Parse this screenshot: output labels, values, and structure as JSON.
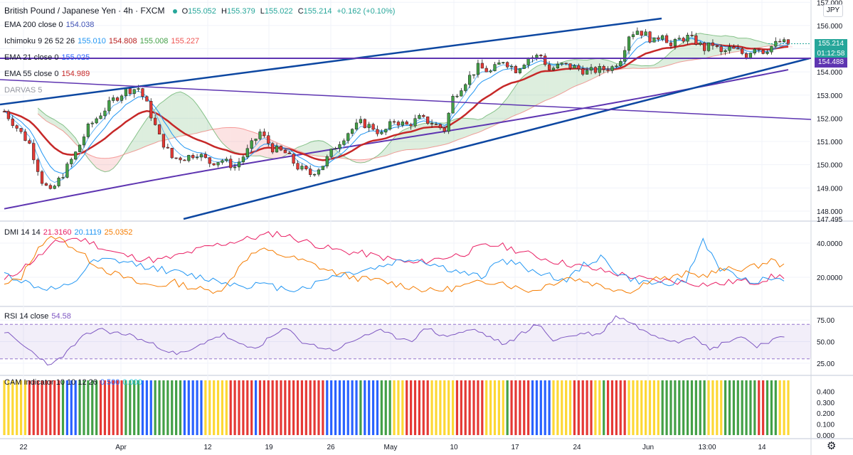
{
  "header": {
    "symbol": "British Pound / Japanese Yen · 4h · FXCM",
    "ohlc": {
      "o_label": "O",
      "o": "155.052",
      "h_label": "H",
      "h": "155.379",
      "l_label": "L",
      "l": "155.022",
      "c_label": "C",
      "c": "155.214",
      "change": "+0.162 (+0.10%)"
    },
    "status_color": "#26a69a"
  },
  "indicators": [
    {
      "label": "EMA 200 close 0",
      "values": [
        {
          "v": "154.038",
          "color": "#3f51b5"
        }
      ]
    },
    {
      "label": "Ichimoku 9 26 52 26",
      "values": [
        {
          "v": "155.010",
          "color": "#2196f3"
        },
        {
          "v": "154.808",
          "color": "#b71c1c"
        },
        {
          "v": "155.008",
          "color": "#43a047"
        },
        {
          "v": "155.227",
          "color": "#ef5350"
        }
      ]
    },
    {
      "label": "EMA 21 close 0",
      "values": [
        {
          "v": "155.025",
          "color": "#2962ff"
        }
      ]
    },
    {
      "label": "EMA 55 close 0",
      "values": [
        {
          "v": "154.989",
          "color": "#c62828"
        }
      ]
    },
    {
      "label": "DARVAS 5",
      "values": [],
      "muted": true
    }
  ],
  "dmi": {
    "label": "DMI 14 14",
    "values": [
      {
        "v": "21.3160",
        "color": "#e91e63"
      },
      {
        "v": "20.1119",
        "color": "#2196f3"
      },
      {
        "v": "25.0352",
        "color": "#f57c00"
      }
    ]
  },
  "rsi": {
    "label": "RSI 14 close",
    "value": "54.58",
    "color": "#7e57c2"
  },
  "cam": {
    "label": "CAM Indicator 10 10 12 26",
    "values": [
      {
        "v": "0.500",
        "color": "#2962ff"
      },
      {
        "v": "0.000",
        "color": "#26c6da"
      }
    ]
  },
  "currency_badge": "JPY",
  "price_tags": [
    {
      "value": "155.214",
      "sub": "01:12:58",
      "color": "#26a69a"
    },
    {
      "value": "154.488",
      "color": "#5e35b1"
    }
  ],
  "price_axis_clipped_label": "147.495",
  "chart_data": [
    {
      "type": "candlestick",
      "title": "British Pound / Japanese Yen · 4h · FXCM",
      "x_tick_labels": [
        "22",
        "Apr",
        "12",
        "19",
        "26",
        "May",
        "10",
        "17",
        "24",
        "Jun",
        "13:00",
        "14"
      ],
      "y_tick_labels": [
        "148.000",
        "149.000",
        "150.000",
        "151.000",
        "152.000",
        "153.000",
        "154.000",
        "155.000",
        "156.000",
        "157.000"
      ],
      "ylim": [
        147.6,
        157.1
      ],
      "grid": true,
      "close_path": [
        {
          "t": 0,
          "p": 152.3
        },
        {
          "t": 3,
          "p": 151.6
        },
        {
          "t": 6,
          "p": 150.9
        },
        {
          "t": 9,
          "p": 149.3
        },
        {
          "t": 11,
          "p": 148.8
        },
        {
          "t": 14,
          "p": 149.6
        },
        {
          "t": 17,
          "p": 150.5
        },
        {
          "t": 20,
          "p": 151.6
        },
        {
          "t": 23,
          "p": 152.2
        },
        {
          "t": 26,
          "p": 152.8
        },
        {
          "t": 29,
          "p": 153.2
        },
        {
          "t": 32,
          "p": 153.3
        },
        {
          "t": 34,
          "p": 152.6
        },
        {
          "t": 37,
          "p": 151.2
        },
        {
          "t": 40,
          "p": 150.3
        },
        {
          "t": 43,
          "p": 150.3
        },
        {
          "t": 46,
          "p": 150.5
        },
        {
          "t": 49,
          "p": 150.1
        },
        {
          "t": 52,
          "p": 150.2
        },
        {
          "t": 55,
          "p": 149.9
        },
        {
          "t": 58,
          "p": 150.6
        },
        {
          "t": 61,
          "p": 151.4
        },
        {
          "t": 64,
          "p": 150.7
        },
        {
          "t": 67,
          "p": 150.5
        },
        {
          "t": 70,
          "p": 149.9
        },
        {
          "t": 73,
          "p": 149.6
        },
        {
          "t": 76,
          "p": 150.0
        },
        {
          "t": 79,
          "p": 150.8
        },
        {
          "t": 82,
          "p": 151.4
        },
        {
          "t": 85,
          "p": 151.8
        },
        {
          "t": 88,
          "p": 151.6
        },
        {
          "t": 90,
          "p": 151.3
        },
        {
          "t": 93,
          "p": 151.9
        },
        {
          "t": 96,
          "p": 151.7
        },
        {
          "t": 99,
          "p": 152.0
        },
        {
          "t": 102,
          "p": 151.8
        },
        {
          "t": 105,
          "p": 151.5
        },
        {
          "t": 107,
          "p": 152.9
        },
        {
          "t": 110,
          "p": 153.6
        },
        {
          "t": 113,
          "p": 154.2
        },
        {
          "t": 116,
          "p": 154.0
        },
        {
          "t": 119,
          "p": 154.5
        },
        {
          "t": 122,
          "p": 154.1
        },
        {
          "t": 125,
          "p": 154.6
        },
        {
          "t": 128,
          "p": 154.7
        },
        {
          "t": 130,
          "p": 154.1
        },
        {
          "t": 133,
          "p": 154.3
        },
        {
          "t": 136,
          "p": 154.2
        },
        {
          "t": 139,
          "p": 154.0
        },
        {
          "t": 142,
          "p": 154.1
        },
        {
          "t": 145,
          "p": 154.2
        },
        {
          "t": 147,
          "p": 154.6
        },
        {
          "t": 149,
          "p": 155.6
        },
        {
          "t": 151,
          "p": 155.8
        },
        {
          "t": 153,
          "p": 155.6
        },
        {
          "t": 155,
          "p": 155.3
        },
        {
          "t": 157,
          "p": 155.7
        },
        {
          "t": 159,
          "p": 155.1
        },
        {
          "t": 161,
          "p": 155.4
        },
        {
          "t": 163,
          "p": 155.5
        },
        {
          "t": 165,
          "p": 155.3
        },
        {
          "t": 167,
          "p": 155.0
        },
        {
          "t": 169,
          "p": 155.2
        },
        {
          "t": 171,
          "p": 154.8
        },
        {
          "t": 173,
          "p": 155.0
        },
        {
          "t": 175,
          "p": 154.9
        },
        {
          "t": 177,
          "p": 154.7
        },
        {
          "t": 179,
          "p": 155.1
        },
        {
          "t": 181,
          "p": 154.9
        },
        {
          "t": 183,
          "p": 155.1
        },
        {
          "t": 185,
          "p": 155.3
        },
        {
          "t": 187,
          "p": 155.2
        }
      ]
    },
    {
      "type": "line",
      "title": "DMI 14 14",
      "y_tick_labels": [
        "20.0000",
        "40.0000"
      ],
      "ylim": [
        5,
        50
      ],
      "series": [
        {
          "color": "#e91e63",
          "values": [
            18,
            25,
            32,
            40,
            43,
            41,
            36,
            33,
            31,
            30,
            32,
            35,
            38,
            40,
            42,
            44,
            46,
            43,
            40,
            37,
            35,
            34,
            32,
            30,
            28,
            30,
            32,
            34,
            38,
            39,
            36,
            33,
            30,
            28,
            26,
            24,
            22,
            20,
            18,
            18,
            17,
            16,
            16,
            18,
            17,
            20,
            21
          ]
        },
        {
          "color": "#2196f3",
          "values": [
            22,
            18,
            14,
            13,
            15,
            28,
            30,
            29,
            27,
            25,
            23,
            21,
            19,
            17,
            15,
            16,
            14,
            13,
            15,
            20,
            22,
            24,
            26,
            29,
            31,
            28,
            25,
            22,
            20,
            30,
            28,
            24,
            21,
            18,
            27,
            32,
            22,
            18,
            16,
            17,
            18,
            42,
            25,
            20,
            18,
            19,
            20
          ]
        },
        {
          "color": "#f57c00",
          "values": [
            15,
            20,
            38,
            44,
            38,
            30,
            24,
            20,
            16,
            15,
            17,
            14,
            12,
            14,
            30,
            36,
            34,
            31,
            28,
            24,
            21,
            19,
            18,
            16,
            14,
            12,
            13,
            15,
            17,
            18,
            14,
            12,
            16,
            20,
            18,
            15,
            13,
            12,
            20,
            19,
            22,
            21,
            24,
            25,
            26,
            30,
            25
          ]
        }
      ]
    },
    {
      "type": "line",
      "title": "RSI 14 close",
      "y_tick_labels": [
        "25.00",
        "50.00",
        "75.00"
      ],
      "ylim": [
        15,
        85
      ],
      "band": [
        30,
        70
      ],
      "series": [
        {
          "color": "#7e57c2",
          "values": [
            62,
            48,
            35,
            22,
            38,
            55,
            65,
            60,
            58,
            50,
            43,
            35,
            40,
            52,
            58,
            46,
            42,
            55,
            65,
            50,
            44,
            40,
            48,
            58,
            62,
            55,
            52,
            66,
            56,
            60,
            64,
            55,
            46,
            60,
            70,
            52,
            56,
            60,
            58,
            80,
            72,
            60,
            55,
            50,
            58,
            40,
            50,
            56,
            45,
            52,
            55
          ]
        }
      ]
    },
    {
      "type": "bar",
      "title": "CAM Indicator 10 10 12 26",
      "y_tick_labels": [
        "0.000",
        "0.100",
        "0.200",
        "0.300",
        "0.400"
      ],
      "ylim": [
        0,
        0.5
      ],
      "palette": [
        "#43a047",
        "#fdd835",
        "#e53935",
        "#2962ff"
      ],
      "bar_height": 0.5
    }
  ]
}
